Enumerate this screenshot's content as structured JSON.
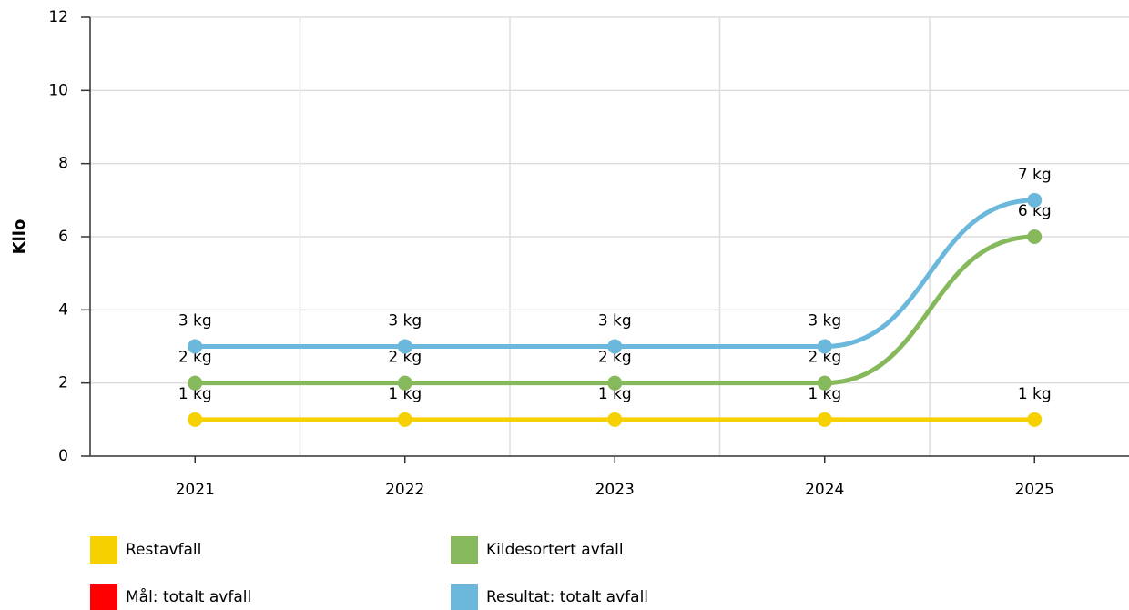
{
  "chart_data": {
    "type": "line",
    "y_label": "Kilo",
    "categories": [
      "2021",
      "2022",
      "2023",
      "2024",
      "2025"
    ],
    "ylim": [
      0,
      12
    ],
    "yticks": [
      0,
      2,
      4,
      6,
      8,
      10,
      12
    ],
    "grid": true,
    "series": [
      {
        "name": "Restavfall",
        "color": "#f7d000",
        "values": [
          1,
          1,
          1,
          1,
          1
        ],
        "value_labels": [
          "1 kg",
          "1 kg",
          "1 kg",
          "1 kg",
          "1 kg"
        ]
      },
      {
        "name": "Kildesortert avfall",
        "color": "#86b85c",
        "values": [
          2,
          2,
          2,
          2,
          6
        ],
        "value_labels": [
          "2 kg",
          "2 kg",
          "2 kg",
          "2 kg",
          "6 kg"
        ]
      },
      {
        "name": "Mål: totalt avfall",
        "color": "#ff0000",
        "values": [
          null,
          null,
          null,
          null,
          null
        ]
      },
      {
        "name": "Resultat: totalt avfall",
        "color": "#6cb8dc",
        "values": [
          3,
          3,
          3,
          3,
          7
        ],
        "value_labels": [
          "3 kg",
          "3 kg",
          "3 kg",
          "3 kg",
          "7 kg"
        ]
      }
    ]
  }
}
